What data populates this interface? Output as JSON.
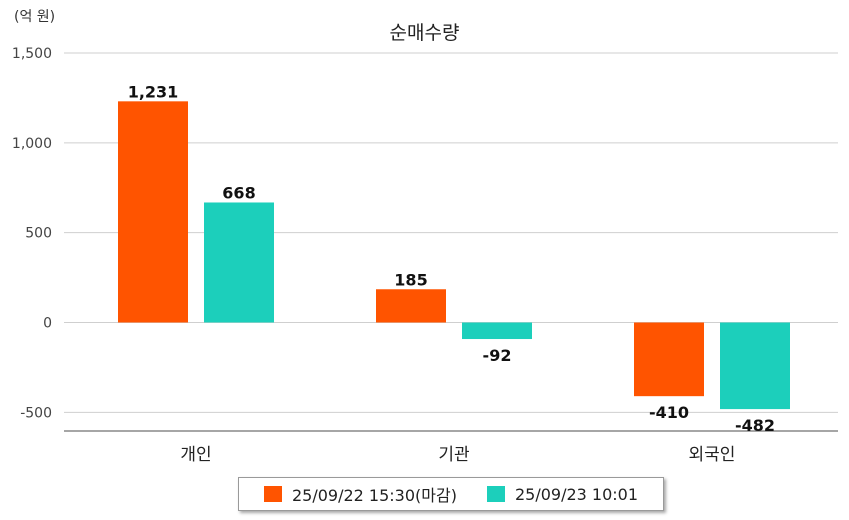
{
  "unit_label": "(억 원)",
  "chart_data": {
    "type": "bar",
    "title": "순매수량",
    "categories": [
      "개인",
      "기관",
      "외국인"
    ],
    "series": [
      {
        "name": "25/09/22 15:30(마감)",
        "color": "#ff5400",
        "values": [
          1231,
          185,
          -410
        ]
      },
      {
        "name": "25/09/23 10:01",
        "color": "#1ccfbb",
        "values": [
          668,
          -92,
          -482
        ]
      }
    ],
    "ylim": [
      -600,
      1500
    ],
    "yticks": [
      1500,
      1000,
      500,
      0,
      -500
    ],
    "ytick_labels": [
      "1,500",
      "1,000",
      "500",
      "0",
      "-500"
    ],
    "data_labels": [
      [
        "1,231",
        "185",
        "-410"
      ],
      [
        "668",
        "-92",
        "-482"
      ]
    ],
    "grid": true,
    "legend_position": "bottom"
  }
}
